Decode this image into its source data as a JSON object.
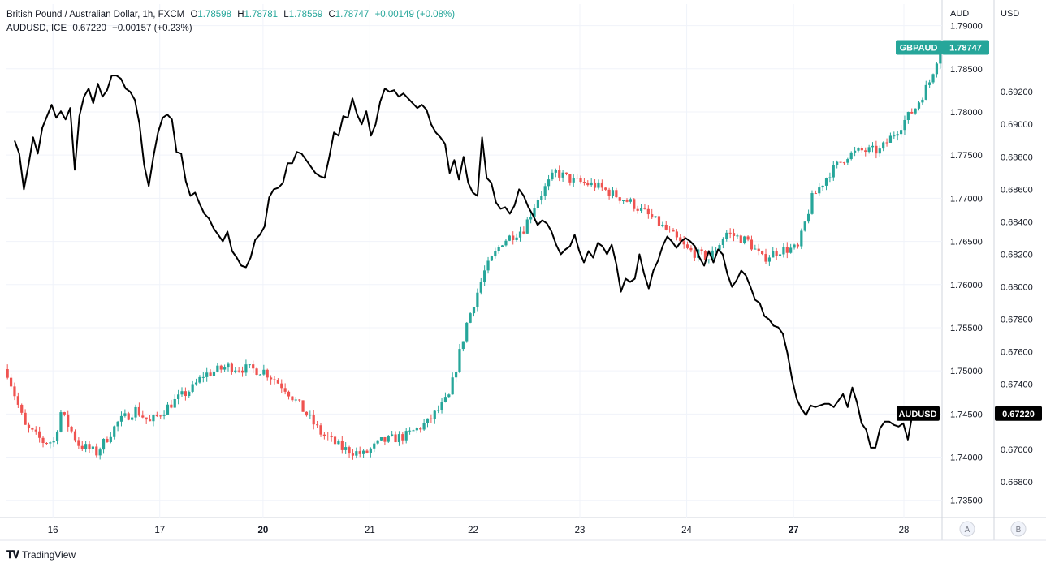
{
  "legend": {
    "symbol_title": "British Pound / Australian Dollar, 1h, FXCM",
    "o_label": "O",
    "o": "1.78598",
    "h_label": "H",
    "h": "1.78781",
    "l_label": "L",
    "l": "1.78559",
    "c_label": "C",
    "c": "1.78747",
    "change": "+0.00149 (+0.08%)",
    "overlay_title": "AUDUSD, ICE",
    "overlay_last": "0.67220",
    "overlay_change": "+0.00157 (+0.23%)"
  },
  "brand": {
    "name": "TradingView"
  },
  "colors": {
    "up": "#26a69a",
    "down": "#ef5350",
    "line": "#000000",
    "grid": "#f0f3fa",
    "text": "#131722"
  },
  "chart_data": {
    "type": "line",
    "title": "British Pound / Australian Dollar, 1h, FXCM",
    "x_ticks": [
      "16",
      "17",
      "20",
      "21",
      "22",
      "23",
      "24",
      "27",
      "28"
    ],
    "left_axis": {
      "unit": "AUD",
      "ylim": [
        1.733,
        1.7925
      ],
      "ticks": [
        "1.79000",
        "1.78500",
        "1.78000",
        "1.77500",
        "1.77000",
        "1.76500",
        "1.76000",
        "1.75500",
        "1.75000",
        "1.74500",
        "1.74000",
        "1.73500"
      ]
    },
    "right_axis": {
      "unit": "USD",
      "ylim": [
        0.6658,
        0.6974
      ],
      "ticks": [
        "0.69200",
        "0.69000",
        "0.68800",
        "0.68600",
        "0.68400",
        "0.68200",
        "0.68000",
        "0.67800",
        "0.67600",
        "0.67400",
        "0.67200",
        "0.67000",
        "0.66800"
      ]
    },
    "axis_letters": [
      "A",
      "B"
    ],
    "last_labels": [
      {
        "name": "GBPAUD",
        "value": "1.78747",
        "axis": "left"
      },
      {
        "name": "AUDUSD",
        "value": "0.67220",
        "axis": "right"
      }
    ],
    "series": [
      {
        "name": "GBPAUD",
        "kind": "candlestick",
        "axis": "left",
        "anchors": [
          [
            0,
            1.7498
          ],
          [
            5,
            1.7435
          ],
          [
            10,
            1.7418
          ],
          [
            13,
            1.7418
          ],
          [
            15,
            1.7452
          ],
          [
            20,
            1.7415
          ],
          [
            25,
            1.7405
          ],
          [
            31,
            1.744
          ],
          [
            36,
            1.7455
          ],
          [
            40,
            1.744
          ],
          [
            46,
            1.7462
          ],
          [
            52,
            1.748
          ],
          [
            55,
            1.7495
          ],
          [
            62,
            1.7505
          ],
          [
            72,
            1.75
          ],
          [
            78,
            1.748
          ],
          [
            82,
            1.746
          ],
          [
            88,
            1.7428
          ],
          [
            94,
            1.741
          ],
          [
            100,
            1.7403
          ],
          [
            105,
            1.7418
          ],
          [
            112,
            1.7425
          ],
          [
            118,
            1.744
          ],
          [
            124,
            1.747
          ],
          [
            129,
            1.7555
          ],
          [
            134,
            1.7615
          ],
          [
            139,
            1.765
          ],
          [
            145,
            1.7665
          ],
          [
            149,
            1.77
          ],
          [
            154,
            1.773
          ],
          [
            159,
            1.772
          ],
          [
            165,
            1.7715
          ],
          [
            170,
            1.7705
          ],
          [
            175,
            1.7695
          ],
          [
            180,
            1.768
          ],
          [
            186,
            1.766
          ],
          [
            191,
            1.764
          ],
          [
            197,
            1.763
          ],
          [
            202,
            1.766
          ],
          [
            208,
            1.765
          ],
          [
            212,
            1.763
          ],
          [
            217,
            1.764
          ],
          [
            222,
            1.7642
          ],
          [
            226,
            1.77
          ],
          [
            231,
            1.773
          ],
          [
            236,
            1.775
          ],
          [
            240,
            1.7755
          ],
          [
            245,
            1.7755
          ],
          [
            251,
            1.7785
          ],
          [
            255,
            1.7805
          ],
          [
            259,
            1.7835
          ],
          [
            262,
            1.78747
          ]
        ]
      },
      {
        "name": "AUDUSD",
        "kind": "line",
        "axis": "right",
        "points": [
          [
            0,
            0.689
          ],
          [
            1,
            0.6882
          ],
          [
            2,
            0.686
          ],
          [
            3,
            0.6875
          ],
          [
            4,
            0.6892
          ],
          [
            5,
            0.6882
          ],
          [
            6,
            0.6898
          ],
          [
            7,
            0.6905
          ],
          [
            8,
            0.6912
          ],
          [
            9,
            0.6904
          ],
          [
            10,
            0.6908
          ],
          [
            11,
            0.6903
          ],
          [
            12,
            0.691
          ],
          [
            13,
            0.6872
          ],
          [
            14,
            0.6905
          ],
          [
            15,
            0.6917
          ],
          [
            16,
            0.6922
          ],
          [
            17,
            0.6913
          ],
          [
            18,
            0.6925
          ],
          [
            19,
            0.6917
          ],
          [
            20,
            0.6921
          ],
          [
            21,
            0.693
          ],
          [
            22,
            0.693
          ],
          [
            23,
            0.6928
          ],
          [
            24,
            0.6922
          ],
          [
            25,
            0.692
          ],
          [
            26,
            0.6915
          ],
          [
            27,
            0.69
          ],
          [
            28,
            0.6875
          ],
          [
            29,
            0.6862
          ],
          [
            30,
            0.688
          ],
          [
            31,
            0.6895
          ],
          [
            32,
            0.6904
          ],
          [
            33,
            0.6906
          ],
          [
            34,
            0.6903
          ],
          [
            35,
            0.6883
          ],
          [
            36,
            0.6882
          ],
          [
            37,
            0.6865
          ],
          [
            38,
            0.6856
          ],
          [
            39,
            0.6858
          ],
          [
            40,
            0.6851
          ],
          [
            41,
            0.6845
          ],
          [
            42,
            0.6842
          ],
          [
            43,
            0.6836
          ],
          [
            44,
            0.6832
          ],
          [
            45,
            0.6828
          ],
          [
            46,
            0.6834
          ],
          [
            47,
            0.6822
          ],
          [
            48,
            0.6818
          ],
          [
            49,
            0.6813
          ],
          [
            50,
            0.6812
          ],
          [
            51,
            0.6818
          ],
          [
            52,
            0.6829
          ],
          [
            53,
            0.6832
          ],
          [
            54,
            0.6837
          ],
          [
            55,
            0.6855
          ],
          [
            56,
            0.686
          ],
          [
            57,
            0.6861
          ],
          [
            58,
            0.6864
          ],
          [
            59,
            0.6876
          ],
          [
            60,
            0.6876
          ],
          [
            61,
            0.6883
          ],
          [
            62,
            0.6882
          ],
          [
            63,
            0.6878
          ],
          [
            64,
            0.6874
          ],
          [
            65,
            0.687
          ],
          [
            66,
            0.6868
          ],
          [
            67,
            0.6867
          ],
          [
            68,
            0.688
          ],
          [
            69,
            0.6895
          ],
          [
            70,
            0.6893
          ],
          [
            71,
            0.6905
          ],
          [
            72,
            0.6904
          ],
          [
            73,
            0.6916
          ],
          [
            74,
            0.6906
          ],
          [
            75,
            0.69
          ],
          [
            76,
            0.6908
          ],
          [
            77,
            0.6893
          ],
          [
            78,
            0.69
          ],
          [
            79,
            0.6914
          ],
          [
            80,
            0.6922
          ],
          [
            81,
            0.692
          ],
          [
            82,
            0.6921
          ],
          [
            83,
            0.6917
          ],
          [
            84,
            0.6919
          ],
          [
            85,
            0.6916
          ],
          [
            86,
            0.6913
          ],
          [
            87,
            0.691
          ],
          [
            88,
            0.6912
          ],
          [
            89,
            0.6909
          ],
          [
            90,
            0.69
          ],
          [
            91,
            0.6895
          ],
          [
            92,
            0.6892
          ],
          [
            93,
            0.6888
          ],
          [
            94,
            0.687
          ],
          [
            95,
            0.6878
          ],
          [
            96,
            0.6866
          ],
          [
            97,
            0.688
          ],
          [
            98,
            0.6864
          ],
          [
            99,
            0.6858
          ],
          [
            100,
            0.6856
          ],
          [
            101,
            0.6892
          ],
          [
            102,
            0.6867
          ],
          [
            103,
            0.6864
          ],
          [
            104,
            0.6852
          ],
          [
            105,
            0.6848
          ],
          [
            106,
            0.6849
          ],
          [
            107,
            0.6845
          ],
          [
            108,
            0.685
          ],
          [
            109,
            0.686
          ],
          [
            110,
            0.6856
          ],
          [
            111,
            0.6849
          ],
          [
            112,
            0.6844
          ],
          [
            113,
            0.6838
          ],
          [
            114,
            0.6841
          ],
          [
            115,
            0.6839
          ],
          [
            116,
            0.6834
          ],
          [
            117,
            0.6826
          ],
          [
            118,
            0.682
          ],
          [
            119,
            0.6823
          ],
          [
            120,
            0.6825
          ],
          [
            121,
            0.6832
          ],
          [
            122,
            0.6822
          ],
          [
            123,
            0.6815
          ],
          [
            124,
            0.6822
          ],
          [
            125,
            0.6818
          ],
          [
            126,
            0.6827
          ],
          [
            127,
            0.6825
          ],
          [
            128,
            0.682
          ],
          [
            129,
            0.6826
          ],
          [
            130,
            0.6814
          ],
          [
            131,
            0.6797
          ],
          [
            132,
            0.6805
          ],
          [
            133,
            0.6803
          ],
          [
            134,
            0.6805
          ],
          [
            135,
            0.682
          ],
          [
            136,
            0.6808
          ],
          [
            137,
            0.6799
          ],
          [
            138,
            0.681
          ],
          [
            139,
            0.6816
          ],
          [
            140,
            0.6825
          ],
          [
            141,
            0.6831
          ],
          [
            142,
            0.6828
          ],
          [
            143,
            0.6824
          ],
          [
            144,
            0.6828
          ],
          [
            145,
            0.683
          ],
          [
            146,
            0.6828
          ],
          [
            147,
            0.6825
          ],
          [
            148,
            0.6818
          ],
          [
            149,
            0.6813
          ],
          [
            150,
            0.6822
          ],
          [
            151,
            0.6815
          ],
          [
            152,
            0.6823
          ],
          [
            153,
            0.682
          ],
          [
            154,
            0.6808
          ],
          [
            155,
            0.68
          ],
          [
            156,
            0.6804
          ],
          [
            157,
            0.681
          ],
          [
            158,
            0.6807
          ],
          [
            159,
            0.68
          ],
          [
            160,
            0.6792
          ],
          [
            161,
            0.679
          ],
          [
            162,
            0.6782
          ],
          [
            163,
            0.678
          ],
          [
            164,
            0.6776
          ],
          [
            165,
            0.6775
          ],
          [
            166,
            0.6771
          ],
          [
            167,
            0.6759
          ],
          [
            168,
            0.6743
          ],
          [
            169,
            0.6731
          ],
          [
            170,
            0.6725
          ],
          [
            171,
            0.6721
          ],
          [
            172,
            0.6727
          ],
          [
            173,
            0.6726
          ],
          [
            174,
            0.6727
          ],
          [
            175,
            0.6728
          ],
          [
            176,
            0.6728
          ],
          [
            177,
            0.6726
          ],
          [
            178,
            0.673
          ],
          [
            179,
            0.6734
          ],
          [
            180,
            0.6726
          ],
          [
            181,
            0.6738
          ],
          [
            182,
            0.6729
          ],
          [
            183,
            0.6716
          ],
          [
            184,
            0.6712
          ],
          [
            185,
            0.6701
          ],
          [
            186,
            0.6701
          ],
          [
            187,
            0.6713
          ],
          [
            188,
            0.6717
          ],
          [
            189,
            0.6717
          ],
          [
            190,
            0.6715
          ],
          [
            191,
            0.6714
          ],
          [
            192,
            0.6716
          ],
          [
            193,
            0.6706
          ],
          [
            194,
            0.6722
          ]
        ]
      }
    ]
  }
}
